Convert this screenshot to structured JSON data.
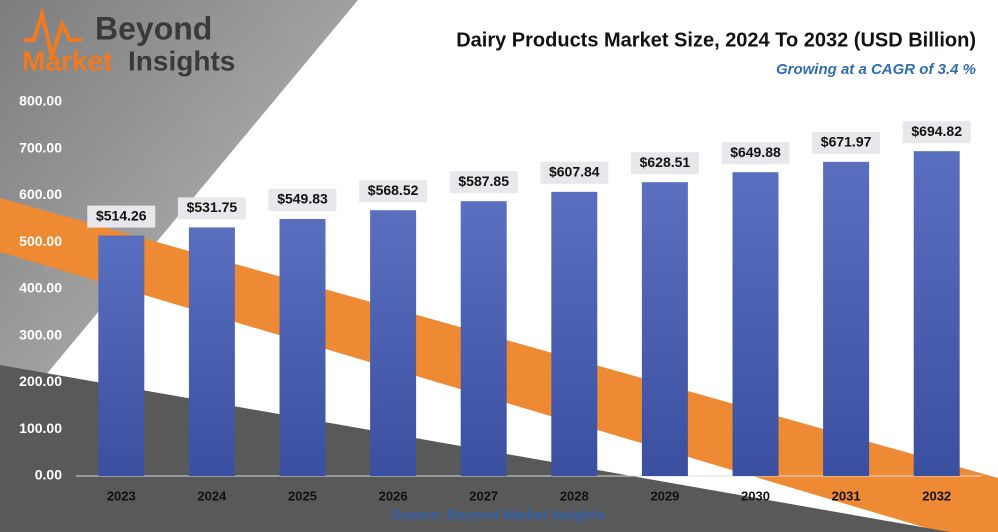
{
  "logo": {
    "line1": "Beyond",
    "line2a": "Market",
    "line2b": "Insights"
  },
  "chart_data": {
    "type": "bar",
    "title": "Dairy Products Market Size, 2024 To 2032 (USD Billion)",
    "subtitle": "Growing at a CAGR of 3.4 %",
    "source": "Source: Beyond Market Insights",
    "categories": [
      "2023",
      "2024",
      "2025",
      "2026",
      "2027",
      "2028",
      "2029",
      "2030",
      "2031",
      "2032"
    ],
    "values": [
      514.26,
      531.75,
      549.83,
      568.52,
      587.85,
      607.84,
      628.51,
      649.88,
      671.97,
      694.82
    ],
    "value_labels": [
      "$514.26",
      "$531.75",
      "$549.83",
      "$568.52",
      "$587.85",
      "$607.84",
      "$628.51",
      "$649.88",
      "$671.97",
      "$694.82"
    ],
    "color": "#4a5fae",
    "ylim": [
      0,
      800
    ],
    "yticks": [
      {
        "value": 0,
        "label": "0.00"
      },
      {
        "value": 100,
        "label": "100.00"
      },
      {
        "value": 200,
        "label": "200.00"
      },
      {
        "value": 300,
        "label": "300.00"
      },
      {
        "value": 400,
        "label": "400.00"
      },
      {
        "value": 500,
        "label": "500.00"
      },
      {
        "value": 600,
        "label": "600.00"
      },
      {
        "value": 700,
        "label": "700.00"
      },
      {
        "value": 800,
        "label": "800.00"
      }
    ]
  }
}
